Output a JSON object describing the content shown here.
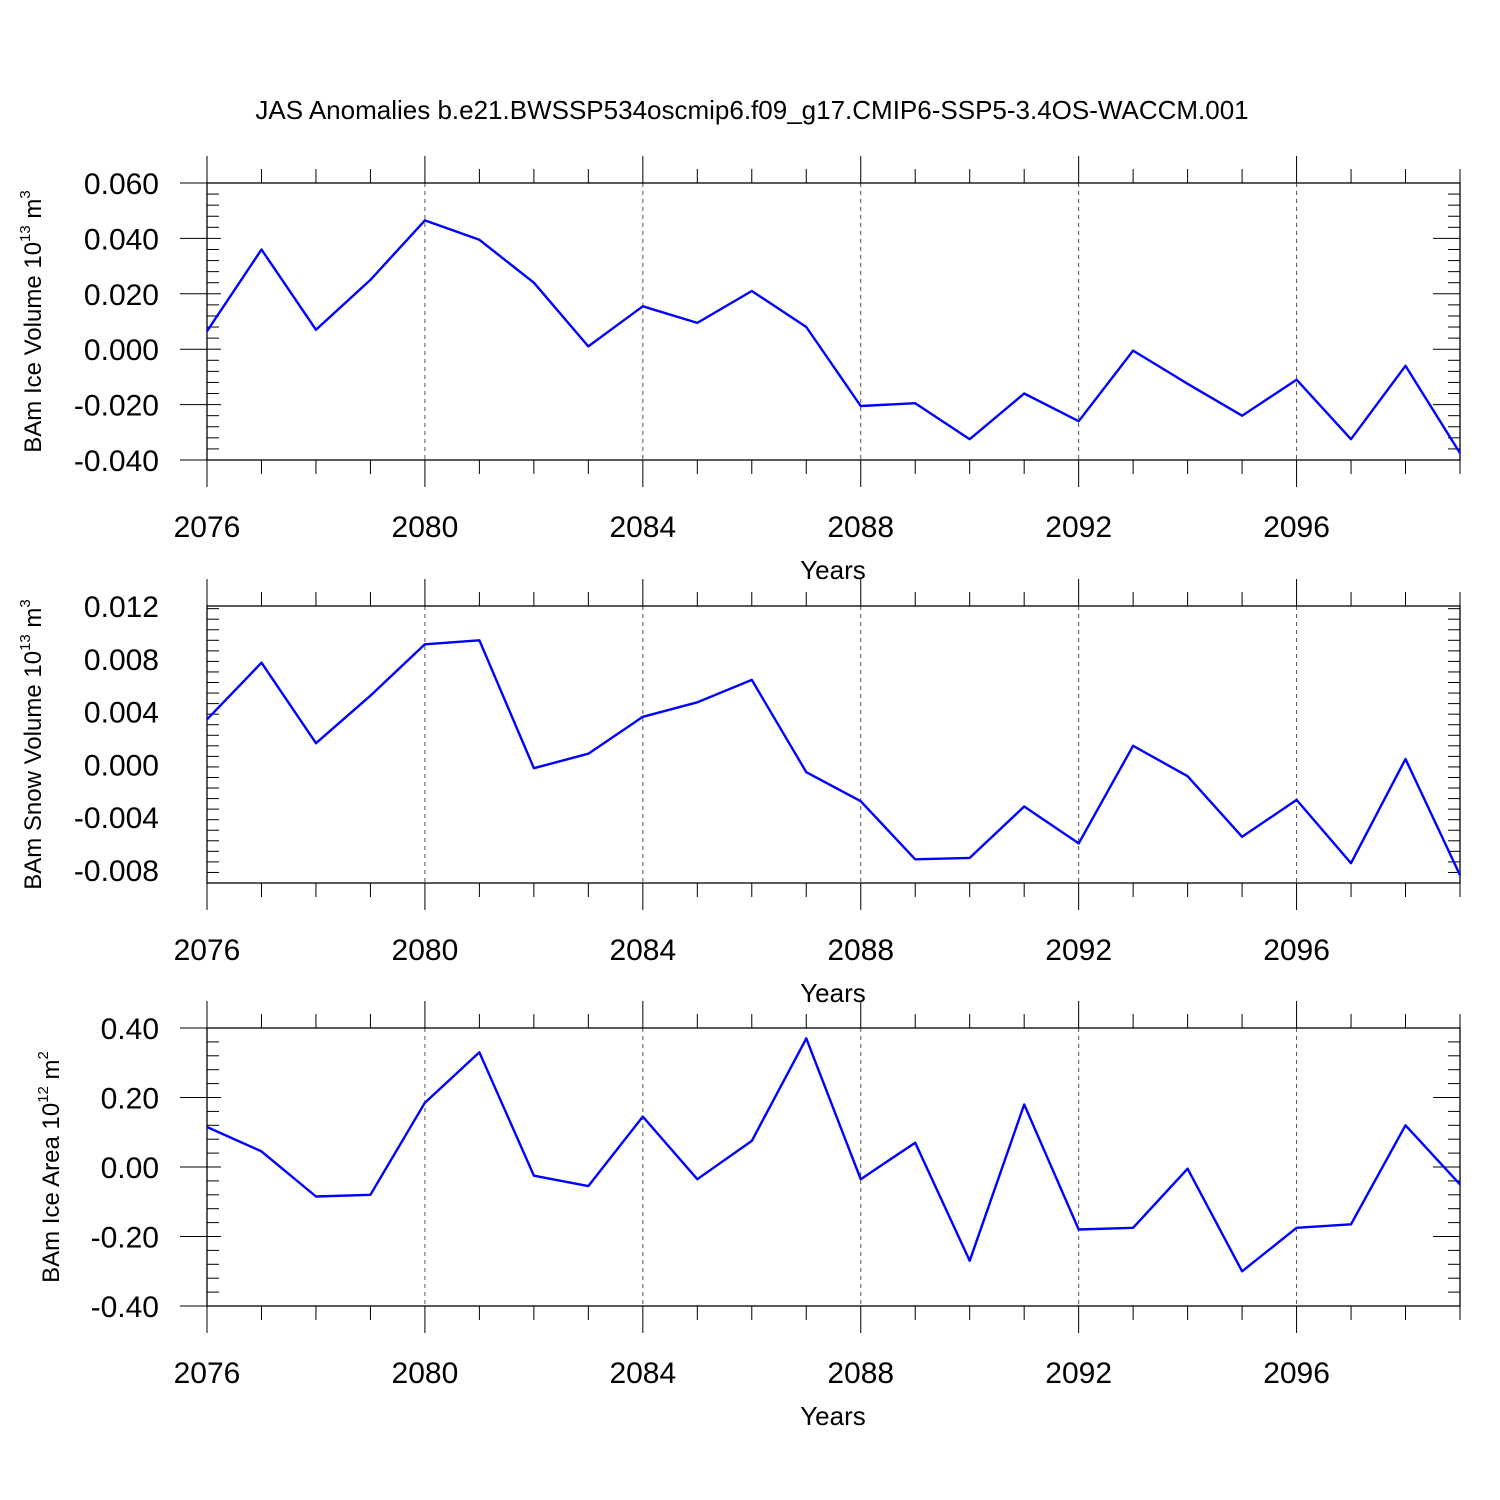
{
  "title": "JAS Anomalies b.e21.BWSSP534oscmip6.f09_g17.CMIP6-SSP5-3.4OS-WACCM.001",
  "colors": {
    "line": "#0000ff",
    "axis": "#000000",
    "grid": "#555555"
  },
  "chart_data": [
    {
      "type": "line",
      "ylabel": {
        "text": "BAm Ice Volume 10",
        "exp": "13",
        "unit": " m",
        "unit_exp": "3"
      },
      "xlabel": "Years",
      "xlim": [
        2076,
        2099
      ],
      "ylim": [
        -0.04,
        0.06
      ],
      "yticks": [
        "0.060",
        "0.040",
        "0.020",
        "0.000",
        "-0.020",
        "-0.040"
      ],
      "ytick_values": [
        0.06,
        0.04,
        0.02,
        0.0,
        -0.02,
        -0.04
      ],
      "xticks": [
        "2076",
        "2080",
        "2084",
        "2088",
        "2092",
        "2096"
      ],
      "xtick_values": [
        2076,
        2080,
        2084,
        2088,
        2092,
        2096
      ],
      "grid": "vertical dashed at major x ticks",
      "x": [
        2076,
        2077,
        2078,
        2079,
        2080,
        2081,
        2082,
        2083,
        2084,
        2085,
        2086,
        2087,
        2088,
        2089,
        2090,
        2091,
        2092,
        2093,
        2094,
        2095,
        2096,
        2097,
        2098,
        2099
      ],
      "values": [
        0.0065,
        0.036,
        0.007,
        0.025,
        0.0465,
        0.0395,
        0.024,
        0.001,
        0.0155,
        0.0095,
        0.021,
        0.008,
        -0.0205,
        -0.0195,
        -0.0325,
        -0.016,
        -0.026,
        -0.0005,
        -0.0125,
        -0.024,
        -0.011,
        -0.0325,
        -0.006,
        -0.0375
      ]
    },
    {
      "type": "line",
      "ylabel": {
        "text": "BAm Snow Volume 10",
        "exp": "13",
        "unit": " m",
        "unit_exp": "3"
      },
      "xlabel": "Years",
      "xlim": [
        2076,
        2099
      ],
      "ylim": [
        -0.009,
        0.012
      ],
      "yticks": [
        "0.012",
        "0.008",
        "0.004",
        "0.000",
        "-0.004",
        "-0.008"
      ],
      "ytick_values": [
        0.012,
        0.008,
        0.004,
        0.0,
        -0.004,
        -0.008
      ],
      "xticks": [
        "2076",
        "2080",
        "2084",
        "2088",
        "2092",
        "2096"
      ],
      "xtick_values": [
        2076,
        2080,
        2084,
        2088,
        2092,
        2096
      ],
      "grid": "vertical dashed at major x ticks",
      "x": [
        2076,
        2077,
        2078,
        2079,
        2080,
        2081,
        2082,
        2083,
        2084,
        2085,
        2086,
        2087,
        2088,
        2089,
        2090,
        2091,
        2092,
        2093,
        2094,
        2095,
        2096,
        2097,
        2098,
        2099
      ],
      "values": [
        0.0034,
        0.0077,
        0.0016,
        0.0052,
        0.0091,
        0.0094,
        -0.0003,
        0.0008,
        0.0036,
        0.0047,
        0.0064,
        -0.0006,
        -0.0028,
        -0.0072,
        -0.0071,
        -0.0032,
        -0.006,
        0.0014,
        -0.0009,
        -0.0055,
        -0.0027,
        -0.0075,
        0.0004,
        -0.0084
      ]
    },
    {
      "type": "line",
      "ylabel": {
        "text": "BAm Ice Area 10",
        "exp": "12",
        "unit": " m",
        "unit_exp": "2"
      },
      "xlabel": "Years",
      "xlim": [
        2076,
        2099
      ],
      "ylim": [
        -0.4,
        0.4
      ],
      "yticks": [
        "0.40",
        "0.20",
        "0.00",
        "-0.20",
        "-0.40"
      ],
      "ytick_values": [
        0.4,
        0.2,
        0.0,
        -0.2,
        -0.4
      ],
      "xticks": [
        "2076",
        "2080",
        "2084",
        "2088",
        "2092",
        "2096"
      ],
      "xtick_values": [
        2076,
        2080,
        2084,
        2088,
        2092,
        2096
      ],
      "grid": "vertical dashed at major x ticks",
      "x": [
        2076,
        2077,
        2078,
        2079,
        2080,
        2081,
        2082,
        2083,
        2084,
        2085,
        2086,
        2087,
        2088,
        2089,
        2090,
        2091,
        2092,
        2093,
        2094,
        2095,
        2096,
        2097,
        2098,
        2099
      ],
      "values": [
        0.115,
        0.045,
        -0.085,
        -0.08,
        0.185,
        0.33,
        -0.025,
        -0.055,
        0.145,
        -0.035,
        0.075,
        0.37,
        -0.035,
        0.07,
        -0.27,
        0.18,
        -0.18,
        -0.175,
        -0.005,
        -0.3,
        -0.175,
        -0.165,
        0.12,
        -0.05
      ]
    }
  ]
}
